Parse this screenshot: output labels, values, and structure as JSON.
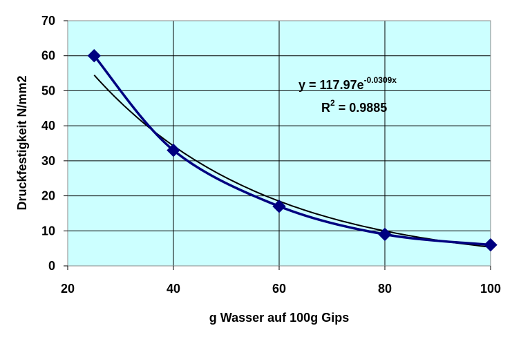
{
  "chart_data": {
    "type": "scatter",
    "xlabel": "g Wasser auf 100g Gips",
    "ylabel": "Druckfestigkeit N/mm2",
    "xlim": [
      20,
      100
    ],
    "ylim": [
      0,
      70
    ],
    "x_ticks": [
      "20",
      "40",
      "60",
      "80",
      "100"
    ],
    "y_ticks": [
      "0",
      "10",
      "20",
      "30",
      "40",
      "50",
      "60",
      "70"
    ],
    "grid": true,
    "plot_background": "#ccffff",
    "series": [
      {
        "x": [
          25,
          40,
          60,
          80,
          100
        ],
        "y": [
          60,
          33,
          17,
          9,
          6
        ],
        "color": "#000080",
        "marker": "diamond",
        "line": "smooth"
      }
    ],
    "trendline": {
      "type": "exponential",
      "a": 117.97,
      "b": -0.0309,
      "x_range": [
        25,
        100
      ],
      "color": "#000000"
    },
    "annotation": {
      "equation_prefix": "y = 117.97e",
      "equation_exponent": "-0.0309x",
      "r2_prefix": "R",
      "r2_exponent": "2",
      "r2_suffix": " = 0.9885"
    }
  }
}
